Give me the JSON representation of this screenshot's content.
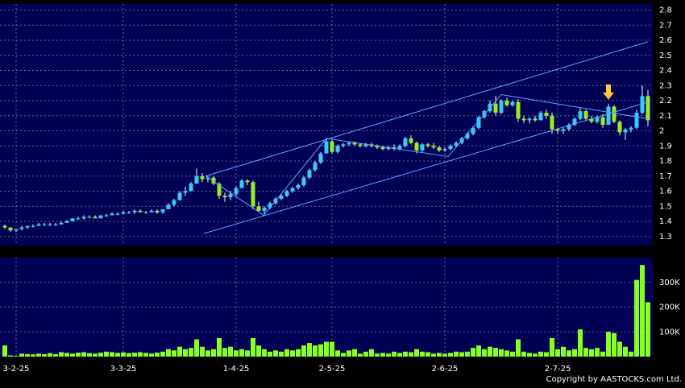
{
  "chart_data": {
    "type": "candlestick",
    "ylim": [
      1.24,
      2.84
    ],
    "yticks": [
      1.3,
      1.4,
      1.5,
      1.6,
      1.7,
      1.8,
      1.9,
      2,
      2.1,
      2.2,
      2.3,
      2.4,
      2.5,
      2.6,
      2.7,
      2.8
    ],
    "vlim": [
      0,
      400000
    ],
    "vticks": [
      {
        "value": 100000,
        "label": "100K"
      },
      {
        "value": 200000,
        "label": "200K"
      },
      {
        "value": 300000,
        "label": "300K"
      }
    ],
    "grid": true,
    "up_color": "#33ccff",
    "down_color": "#99ee22",
    "volume_color": "#88ff22",
    "line_color": "#55aaff",
    "arrow_color": "#ffcc33",
    "x_labels": [
      {
        "index": 2,
        "label": "3-2-25"
      },
      {
        "index": 21,
        "label": "3-3-25"
      },
      {
        "index": 41,
        "label": "1-4-25"
      },
      {
        "index": 58,
        "label": "2-5-25"
      },
      {
        "index": 78,
        "label": "2-6-25"
      },
      {
        "index": 98,
        "label": "2-7-25"
      }
    ],
    "ohlc": [
      [
        1.37,
        1.38,
        1.35,
        1.36
      ],
      [
        1.36,
        1.36,
        1.33,
        1.34
      ],
      [
        1.34,
        1.35,
        1.33,
        1.35
      ],
      [
        1.35,
        1.37,
        1.34,
        1.36
      ],
      [
        1.36,
        1.37,
        1.35,
        1.37
      ],
      [
        1.37,
        1.38,
        1.36,
        1.37
      ],
      [
        1.37,
        1.39,
        1.37,
        1.38
      ],
      [
        1.38,
        1.39,
        1.37,
        1.38
      ],
      [
        1.38,
        1.39,
        1.37,
        1.38
      ],
      [
        1.38,
        1.39,
        1.37,
        1.38
      ],
      [
        1.38,
        1.4,
        1.38,
        1.39
      ],
      [
        1.39,
        1.41,
        1.39,
        1.4
      ],
      [
        1.4,
        1.42,
        1.4,
        1.42
      ],
      [
        1.42,
        1.43,
        1.41,
        1.42
      ],
      [
        1.42,
        1.44,
        1.41,
        1.43
      ],
      [
        1.43,
        1.44,
        1.42,
        1.43
      ],
      [
        1.43,
        1.44,
        1.42,
        1.42
      ],
      [
        1.42,
        1.44,
        1.42,
        1.44
      ],
      [
        1.44,
        1.45,
        1.43,
        1.44
      ],
      [
        1.44,
        1.46,
        1.44,
        1.45
      ],
      [
        1.45,
        1.46,
        1.44,
        1.45
      ],
      [
        1.45,
        1.47,
        1.45,
        1.46
      ],
      [
        1.46,
        1.47,
        1.45,
        1.46
      ],
      [
        1.46,
        1.48,
        1.45,
        1.47
      ],
      [
        1.47,
        1.48,
        1.46,
        1.46
      ],
      [
        1.46,
        1.47,
        1.45,
        1.46
      ],
      [
        1.46,
        1.48,
        1.46,
        1.47
      ],
      [
        1.47,
        1.48,
        1.45,
        1.46
      ],
      [
        1.46,
        1.48,
        1.45,
        1.48
      ],
      [
        1.48,
        1.52,
        1.48,
        1.51
      ],
      [
        1.51,
        1.55,
        1.5,
        1.54
      ],
      [
        1.54,
        1.6,
        1.54,
        1.59
      ],
      [
        1.59,
        1.63,
        1.57,
        1.6
      ],
      [
        1.6,
        1.66,
        1.6,
        1.65
      ],
      [
        1.65,
        1.75,
        1.65,
        1.7
      ],
      [
        1.7,
        1.72,
        1.66,
        1.68
      ],
      [
        1.68,
        1.7,
        1.66,
        1.69
      ],
      [
        1.69,
        1.7,
        1.64,
        1.65
      ],
      [
        1.65,
        1.66,
        1.55,
        1.57
      ],
      [
        1.57,
        1.59,
        1.53,
        1.56
      ],
      [
        1.56,
        1.6,
        1.54,
        1.58
      ],
      [
        1.58,
        1.63,
        1.57,
        1.62
      ],
      [
        1.62,
        1.68,
        1.62,
        1.67
      ],
      [
        1.67,
        1.68,
        1.64,
        1.66
      ],
      [
        1.66,
        1.67,
        1.48,
        1.5
      ],
      [
        1.5,
        1.53,
        1.46,
        1.47
      ],
      [
        1.47,
        1.5,
        1.45,
        1.49
      ],
      [
        1.49,
        1.53,
        1.48,
        1.52
      ],
      [
        1.52,
        1.56,
        1.51,
        1.55
      ],
      [
        1.55,
        1.58,
        1.54,
        1.57
      ],
      [
        1.57,
        1.61,
        1.56,
        1.6
      ],
      [
        1.6,
        1.63,
        1.59,
        1.62
      ],
      [
        1.62,
        1.65,
        1.61,
        1.64
      ],
      [
        1.64,
        1.7,
        1.63,
        1.69
      ],
      [
        1.69,
        1.75,
        1.68,
        1.74
      ],
      [
        1.74,
        1.8,
        1.73,
        1.79
      ],
      [
        1.79,
        1.86,
        1.78,
        1.85
      ],
      [
        1.85,
        1.95,
        1.85,
        1.93
      ],
      [
        1.93,
        1.94,
        1.85,
        1.86
      ],
      [
        1.86,
        1.91,
        1.85,
        1.9
      ],
      [
        1.9,
        1.92,
        1.89,
        1.91
      ],
      [
        1.91,
        1.93,
        1.9,
        1.92
      ],
      [
        1.92,
        1.93,
        1.9,
        1.91
      ],
      [
        1.91,
        1.92,
        1.89,
        1.9
      ],
      [
        1.9,
        1.92,
        1.89,
        1.91
      ],
      [
        1.91,
        1.92,
        1.89,
        1.9
      ],
      [
        1.9,
        1.91,
        1.88,
        1.89
      ],
      [
        1.89,
        1.9,
        1.87,
        1.88
      ],
      [
        1.88,
        1.9,
        1.87,
        1.89
      ],
      [
        1.89,
        1.91,
        1.87,
        1.88
      ],
      [
        1.88,
        1.91,
        1.87,
        1.9
      ],
      [
        1.9,
        1.96,
        1.89,
        1.95
      ],
      [
        1.95,
        1.97,
        1.91,
        1.92
      ],
      [
        1.92,
        1.93,
        1.85,
        1.87
      ],
      [
        1.87,
        1.92,
        1.86,
        1.91
      ],
      [
        1.91,
        1.92,
        1.89,
        1.9
      ],
      [
        1.9,
        1.92,
        1.88,
        1.89
      ],
      [
        1.89,
        1.9,
        1.86,
        1.87
      ],
      [
        1.87,
        1.89,
        1.86,
        1.88
      ],
      [
        1.88,
        1.91,
        1.87,
        1.9
      ],
      [
        1.9,
        1.93,
        1.89,
        1.92
      ],
      [
        1.92,
        1.96,
        1.91,
        1.95
      ],
      [
        1.95,
        1.99,
        1.94,
        1.98
      ],
      [
        1.98,
        2.03,
        1.97,
        2.02
      ],
      [
        2.02,
        2.1,
        2.01,
        2.09
      ],
      [
        2.09,
        2.14,
        2.08,
        2.13
      ],
      [
        2.13,
        2.2,
        2.12,
        2.18
      ],
      [
        2.18,
        2.23,
        2.1,
        2.12
      ],
      [
        2.12,
        2.21,
        2.11,
        2.2
      ],
      [
        2.2,
        2.22,
        2.16,
        2.17
      ],
      [
        2.17,
        2.2,
        2.16,
        2.19
      ],
      [
        2.19,
        2.21,
        2.06,
        2.08
      ],
      [
        2.08,
        2.1,
        2.05,
        2.07
      ],
      [
        2.07,
        2.09,
        2.05,
        2.08
      ],
      [
        2.08,
        2.1,
        2.06,
        2.07
      ],
      [
        2.07,
        2.13,
        2.07,
        2.12
      ],
      [
        2.12,
        2.14,
        2.08,
        2.1
      ],
      [
        2.1,
        2.12,
        1.98,
        2.01
      ],
      [
        2.01,
        2.02,
        1.98,
        2
      ],
      [
        2,
        2.02,
        1.98,
        2.01
      ],
      [
        2.01,
        2.05,
        2,
        2.04
      ],
      [
        2.04,
        2.09,
        2.03,
        2.08
      ],
      [
        2.08,
        2.15,
        2.07,
        2.13
      ],
      [
        2.13,
        2.14,
        2.07,
        2.08
      ],
      [
        2.08,
        2.1,
        2.05,
        2.06
      ],
      [
        2.06,
        2.1,
        2.05,
        2.09
      ],
      [
        2.09,
        2.11,
        2.02,
        2.04
      ],
      [
        2.04,
        2.18,
        2.04,
        2.16
      ],
      [
        2.16,
        2.17,
        2.05,
        2.06
      ],
      [
        2.06,
        2.07,
        1.97,
        1.99
      ],
      [
        1.99,
        2.02,
        1.94,
        2.01
      ],
      [
        2.01,
        2.03,
        1.99,
        2.02
      ],
      [
        2.02,
        2.14,
        2.01,
        2.12
      ],
      [
        2.12,
        2.3,
        2.11,
        2.23
      ],
      [
        2.23,
        2.27,
        2.03,
        2.07
      ]
    ],
    "volume": [
      45000,
      5000,
      3000,
      12000,
      10000,
      9000,
      12000,
      10000,
      14000,
      10000,
      18000,
      15000,
      12000,
      16000,
      18000,
      14000,
      12000,
      16000,
      20000,
      18000,
      15000,
      17000,
      14000,
      16000,
      18000,
      15000,
      12000,
      16000,
      20000,
      30000,
      25000,
      40000,
      30000,
      35000,
      70000,
      40000,
      25000,
      30000,
      75000,
      35000,
      40000,
      25000,
      30000,
      25000,
      75000,
      45000,
      30000,
      20000,
      25000,
      20000,
      30000,
      25000,
      30000,
      45000,
      55000,
      45000,
      50000,
      60000,
      60000,
      25000,
      15000,
      25000,
      30000,
      12000,
      20000,
      30000,
      12000,
      15000,
      12000,
      20000,
      15000,
      20000,
      18000,
      30000,
      20000,
      18000,
      12000,
      15000,
      12000,
      15000,
      20000,
      18000,
      20000,
      35000,
      45000,
      30000,
      40000,
      35000,
      30000,
      25000,
      20000,
      70000,
      20000,
      15000,
      12000,
      20000,
      18000,
      75000,
      30000,
      40000,
      25000,
      30000,
      110000,
      35000,
      30000,
      35000,
      20000,
      100000,
      95000,
      60000,
      40000,
      20000,
      310000,
      370000,
      220000
    ],
    "trendlines": [
      [
        [
          35.6,
          1.7
        ],
        [
          114,
          2.59
        ]
      ],
      [
        [
          35.3,
          1.32
        ],
        [
          114,
          2.19
        ]
      ]
    ],
    "zigzag": [
      [
        35.6,
        1.7
      ],
      [
        45.9,
        1.44
      ],
      [
        57,
        1.95
      ],
      [
        78.6,
        1.83
      ],
      [
        88,
        2.24
      ],
      [
        114,
        2.08
      ]
    ],
    "arrow": {
      "index": 107,
      "price": 2.19
    },
    "copyright": "Copyright by AASTOCKS.com Ltd."
  }
}
